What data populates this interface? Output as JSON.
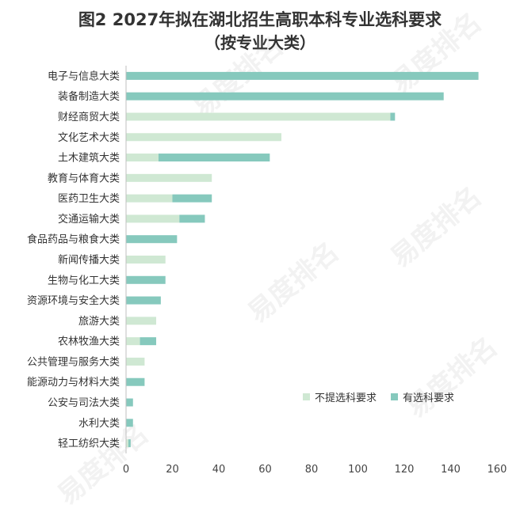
{
  "title": "图2 2027年拟在湖北招生高职本科专业选科要求",
  "subtitle": "（按专业大类）",
  "watermark_text": "易度排名",
  "colors": {
    "none": "#cfe8d3",
    "req": "#86c9bd"
  },
  "chart_data": {
    "type": "bar",
    "orientation": "horizontal",
    "stacked": true,
    "categories": [
      "电子与信息大类",
      "装备制造大类",
      "财经商贸大类",
      "文化艺术大类",
      "土木建筑大类",
      "教育与体育大类",
      "医药卫生大类",
      "交通运输大类",
      "食品药品与粮食大类",
      "新闻传播大类",
      "生物与化工大类",
      "资源环境与安全大类",
      "旅游大类",
      "农林牧渔大类",
      "公共管理与服务大类",
      "能源动力与材料大类",
      "公安与司法大类",
      "水利大类",
      "轻工纺织大类"
    ],
    "series": [
      {
        "name": "不提选科要求",
        "values": [
          0,
          0,
          114,
          67,
          14,
          37,
          20,
          23,
          0,
          17,
          0,
          0,
          13,
          6,
          8,
          0,
          0,
          0,
          1
        ]
      },
      {
        "name": "有选科要求",
        "values": [
          152,
          137,
          2,
          0,
          48,
          0,
          17,
          11,
          22,
          0,
          17,
          15,
          0,
          7,
          0,
          8,
          3,
          3,
          1
        ]
      }
    ],
    "xlim": [
      0,
      160
    ],
    "xticks": [
      "0",
      "20",
      "40",
      "60",
      "80",
      "100",
      "120",
      "140",
      "160"
    ],
    "legend_position": "bottom-right",
    "grid": false
  }
}
